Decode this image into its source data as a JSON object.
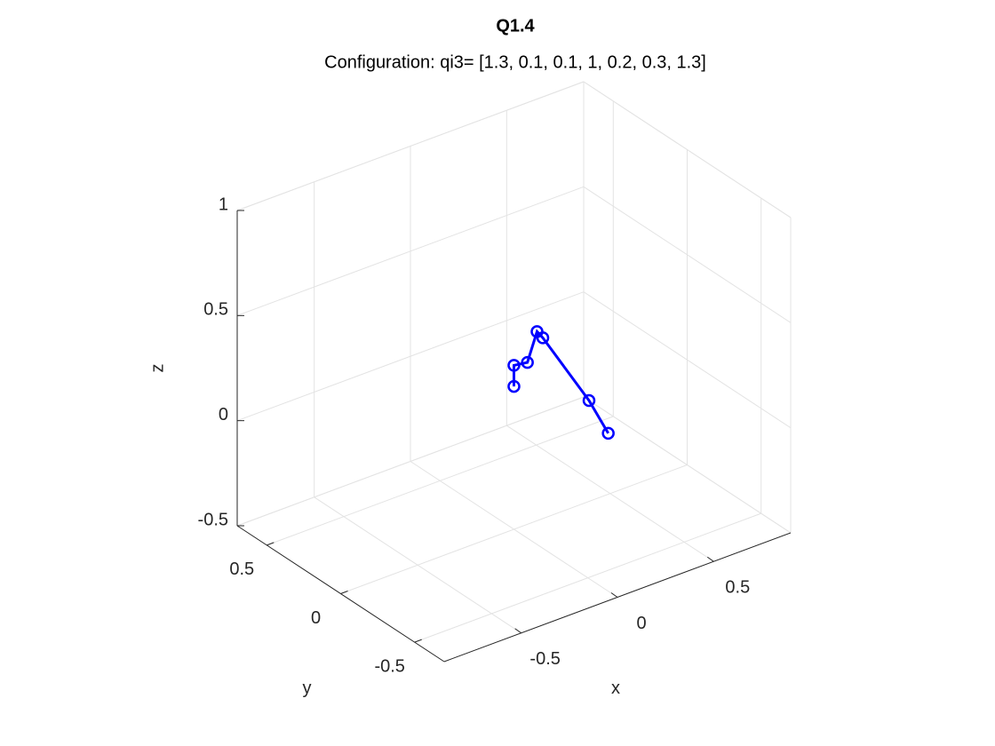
{
  "chart_data": {
    "type": "line3d",
    "title": "Q1.4",
    "subtitle": "Configuration: qi3= [1.3, 0.1, 0.1, 1, 0.2, 0.3, 1.3]",
    "x_label": "x",
    "y_label": "y",
    "z_label": "z",
    "x": [
      0,
      0,
      0.07,
      0.12,
      0.15,
      0.39,
      0.49
    ],
    "y": [
      0,
      0,
      0,
      0,
      0,
      0,
      0
    ],
    "z": [
      0.18,
      0.28,
      0.27,
      0.4,
      0.36,
      -0.02,
      -0.21
    ],
    "color": "#0000ff",
    "marker": "o",
    "xlim": [
      -0.9,
      0.9
    ],
    "ylim": [
      -0.7,
      0.7
    ],
    "zlim": [
      -0.5,
      1
    ],
    "xticks": [
      -0.5,
      0,
      0.5
    ],
    "yticks": [
      -0.5,
      0,
      0.5
    ],
    "zticks": [
      -0.5,
      0,
      0.5,
      1
    ],
    "grid": true
  }
}
